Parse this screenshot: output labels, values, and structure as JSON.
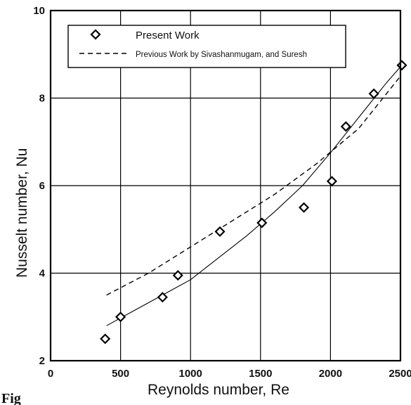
{
  "chart_data": {
    "type": "scatter",
    "xlabel": "Reynolds number,  Re",
    "ylabel": "Nusselt number,  Nu",
    "xlim": [
      0,
      2500
    ],
    "ylim": [
      2,
      10
    ],
    "xticks": [
      0,
      500,
      1000,
      1500,
      2000,
      2500
    ],
    "yticks": [
      2,
      4,
      6,
      8,
      10
    ],
    "grid": true,
    "legend_position": "top",
    "series": [
      {
        "name": "Present Work",
        "marker": "diamond",
        "points": [
          {
            "x": 390,
            "y": 2.5
          },
          {
            "x": 500,
            "y": 3.0
          },
          {
            "x": 800,
            "y": 3.45
          },
          {
            "x": 910,
            "y": 3.95
          },
          {
            "x": 1210,
            "y": 4.95
          },
          {
            "x": 1510,
            "y": 5.15
          },
          {
            "x": 1810,
            "y": 5.5
          },
          {
            "x": 2010,
            "y": 6.1
          },
          {
            "x": 2110,
            "y": 7.35
          },
          {
            "x": 2310,
            "y": 8.1
          },
          {
            "x": 2510,
            "y": 8.75
          }
        ]
      },
      {
        "name": "Previous Work by Sivashanmugam, and Suresh",
        "style": "dashed",
        "points": [
          {
            "x": 400,
            "y": 3.5
          },
          {
            "x": 700,
            "y": 4.0
          },
          {
            "x": 1000,
            "y": 4.6
          },
          {
            "x": 1300,
            "y": 5.2
          },
          {
            "x": 1600,
            "y": 5.8
          },
          {
            "x": 1900,
            "y": 6.5
          },
          {
            "x": 2200,
            "y": 7.3
          },
          {
            "x": 2500,
            "y": 8.5
          }
        ]
      },
      {
        "name": "",
        "style": "solid",
        "points": [
          {
            "x": 400,
            "y": 2.8
          },
          {
            "x": 600,
            "y": 3.15
          },
          {
            "x": 800,
            "y": 3.5
          },
          {
            "x": 1000,
            "y": 3.85
          },
          {
            "x": 1200,
            "y": 4.35
          },
          {
            "x": 1400,
            "y": 4.85
          },
          {
            "x": 1600,
            "y": 5.4
          },
          {
            "x": 1800,
            "y": 6.0
          },
          {
            "x": 2000,
            "y": 6.75
          },
          {
            "x": 2200,
            "y": 7.55
          },
          {
            "x": 2400,
            "y": 8.35
          },
          {
            "x": 2510,
            "y": 8.75
          }
        ]
      }
    ],
    "caption": "Fig"
  }
}
